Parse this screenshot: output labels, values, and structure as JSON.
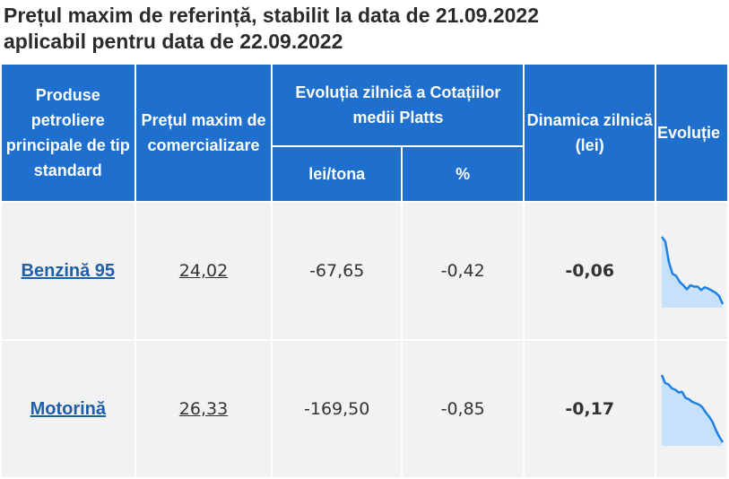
{
  "title": {
    "line1": "Prețul maxim de referință, stabilit la data de 21.09.2022",
    "line2": "aplicabil pentru data de 22.09.2022"
  },
  "table": {
    "headers": {
      "product": "Produse petroliere principale de tip standard",
      "max_price": "Prețul maxim de comercializare",
      "evolution": "Evoluția zilnică a Cotațiilor medii Platts",
      "lei_tona": "lei/tona",
      "percent": "%",
      "dynamics": "Dinamica zilnică (lei)",
      "trend": "Evoluție"
    },
    "rows": [
      {
        "product": "Benzină 95",
        "max_price": "24,02",
        "lei_tona": "-67,65",
        "percent": "-0,42",
        "dynamics": "-0,06",
        "trend": [
          1.0,
          0.93,
          0.62,
          0.45,
          0.42,
          0.33,
          0.28,
          0.22,
          0.28,
          0.26,
          0.26,
          0.21,
          0.25,
          0.23,
          0.2,
          0.17,
          0.12,
          0.0
        ]
      },
      {
        "product": "Motorină",
        "max_price": "26,33",
        "lei_tona": "-169,50",
        "percent": "-0,85",
        "dynamics": "-0,17",
        "trend": [
          1.0,
          0.88,
          0.86,
          0.8,
          0.78,
          0.74,
          0.75,
          0.66,
          0.64,
          0.6,
          0.58,
          0.56,
          0.52,
          0.44,
          0.38,
          0.3,
          0.18,
          0.08,
          0.0
        ]
      }
    ]
  },
  "colors": {
    "header_bg": "#1e6fce",
    "row_bg": "#f2f2f2",
    "link": "#1f5fa8",
    "negative": "#e8402f",
    "spark_line": "#1e80e0",
    "spark_fill": "#c8e1fa"
  }
}
